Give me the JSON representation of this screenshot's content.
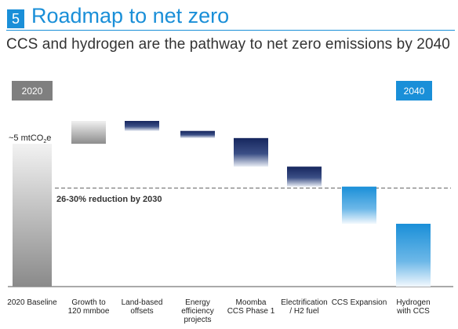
{
  "header": {
    "section_number": "5",
    "title": "Roadmap to net zero",
    "subtitle": "CCS and hydrogen are the pathway to net zero emissions by 2040"
  },
  "chart_data": {
    "type": "waterfall",
    "start_label_year": "2020",
    "end_label_year": "2040",
    "start_value_label_prefix": "~5 mtCO",
    "start_value_label_sub": "2",
    "start_value_label_suffix": "e",
    "reference_line_label": "26-30% reduction by 2030",
    "ylim": [
      0,
      5.5
    ],
    "reference_value": 3.45,
    "colors": {
      "baseline": "#8c8c8c",
      "growth": "#8c8c8c",
      "reduction_dark": "#16265e",
      "reduction_blue": "#1a8fd8",
      "year_tag_2020": "#7f7f7f",
      "year_tag_2040": "#1a8fd8"
    },
    "steps": [
      {
        "category": [
          "2020 Baseline"
        ],
        "kind": "baseline",
        "start": 0,
        "end": 5.0,
        "style": "grey"
      },
      {
        "category": [
          "Growth to",
          "120 mmboe"
        ],
        "kind": "increase",
        "start": 5.0,
        "end": 5.8,
        "style": "grey"
      },
      {
        "category": [
          "Land-based",
          "offsets"
        ],
        "kind": "decrease",
        "start": 5.8,
        "end": 5.45,
        "style": "dark"
      },
      {
        "category": [
          "Energy",
          "efficiency",
          "projects"
        ],
        "kind": "decrease",
        "start": 5.45,
        "end": 5.2,
        "style": "dark"
      },
      {
        "category": [
          "Moomba",
          "CCS Phase 1"
        ],
        "kind": "decrease",
        "start": 5.2,
        "end": 4.2,
        "style": "dark"
      },
      {
        "category": [
          "Electrification",
          "/ H2 fuel"
        ],
        "kind": "decrease",
        "start": 4.2,
        "end": 3.5,
        "style": "dark"
      },
      {
        "category": [
          "CCS Expansion"
        ],
        "kind": "decrease",
        "start": 3.5,
        "end": 2.2,
        "style": "blue"
      },
      {
        "category": [
          "Hydrogen",
          "with CCS"
        ],
        "kind": "decrease",
        "start": 2.2,
        "end": 0,
        "style": "blue"
      }
    ]
  }
}
